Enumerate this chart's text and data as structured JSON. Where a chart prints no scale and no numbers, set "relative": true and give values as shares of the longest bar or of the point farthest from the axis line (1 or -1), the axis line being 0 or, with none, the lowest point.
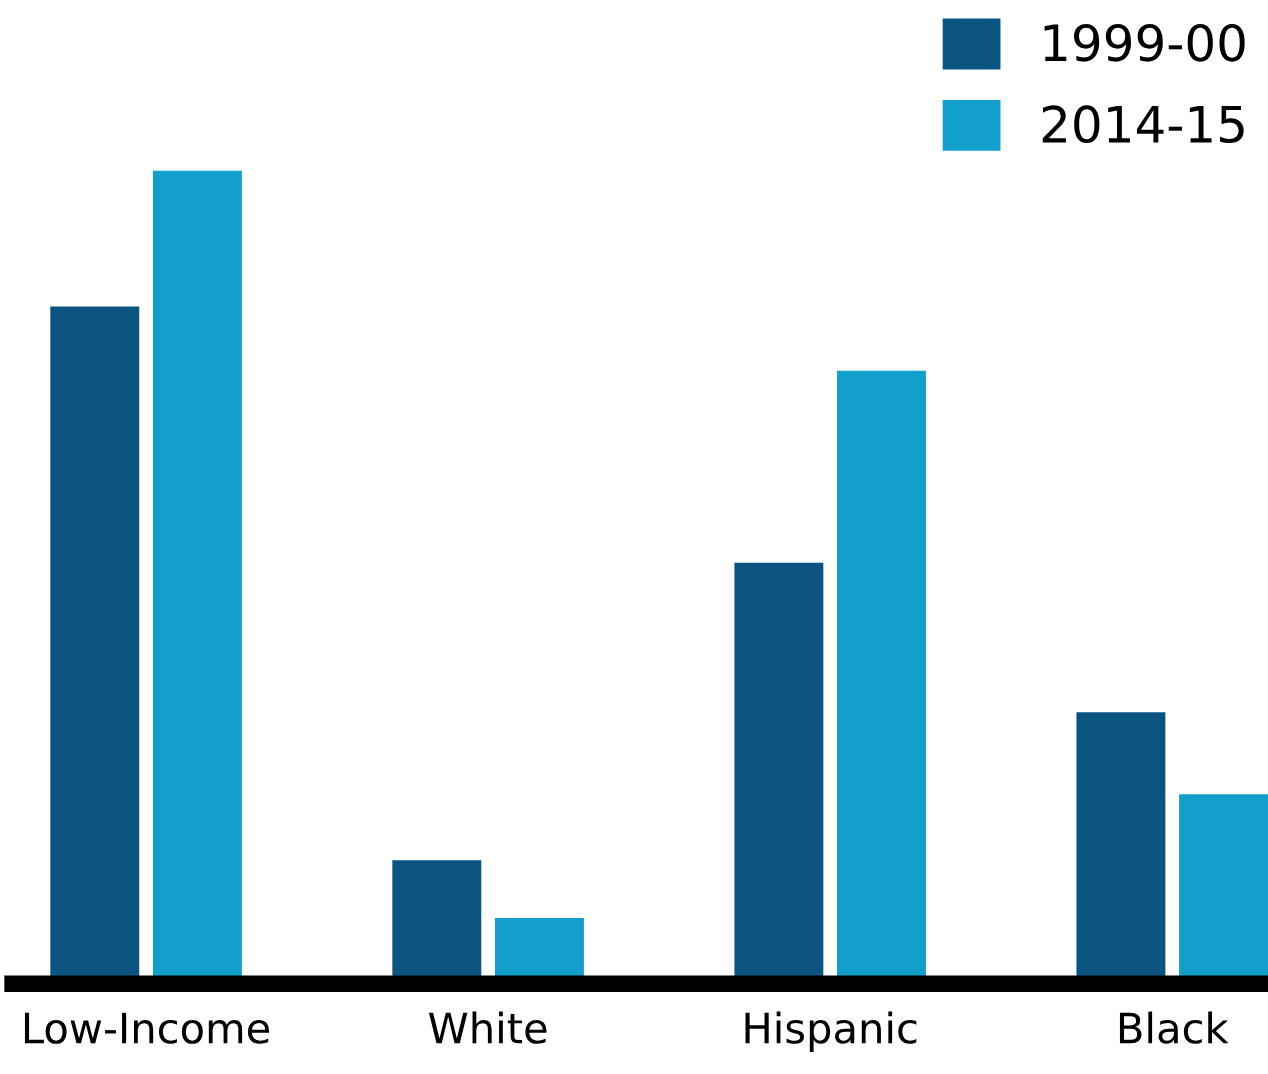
{
  "chart_data": {
    "type": "bar",
    "relative": true,
    "categories": [
      "Low-Income",
      "White",
      "Hispanic",
      "Black"
    ],
    "series": [
      {
        "name": "1999-00",
        "color": "#0b5482",
        "values": [
          0.833,
          0.152,
          0.518,
          0.334
        ]
      },
      {
        "name": "2014-15",
        "color": "#139fcc",
        "values": [
          1,
          0.081,
          0.754,
          0.233
        ]
      }
    ],
    "legend": "top right",
    "grid": false
  }
}
